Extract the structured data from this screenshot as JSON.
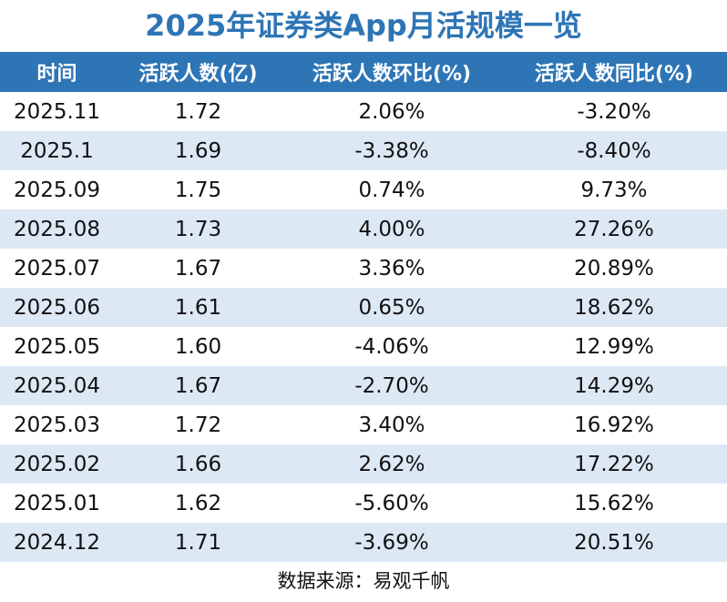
{
  "title": "2025年证券类App月活规模一览",
  "table": {
    "header": [
      "时间",
      "活跃人数(亿)",
      "活跃人数环比(%)",
      "活跃人数同比(%)"
    ],
    "rows": [
      [
        "2025.11",
        "1.72",
        "2.06%",
        "-3.20%"
      ],
      [
        "2025.1",
        "1.69",
        "-3.38%",
        "-8.40%"
      ],
      [
        "2025.09",
        "1.75",
        "0.74%",
        "9.73%"
      ],
      [
        "2025.08",
        "1.73",
        "4.00%",
        "27.26%"
      ],
      [
        "2025.07",
        "1.67",
        "3.36%",
        "20.89%"
      ],
      [
        "2025.06",
        "1.61",
        "0.65%",
        "18.62%"
      ],
      [
        "2025.05",
        "1.60",
        "-4.06%",
        "12.99%"
      ],
      [
        "2025.04",
        "1.67",
        "-2.70%",
        "14.29%"
      ],
      [
        "2025.03",
        "1.72",
        "3.40%",
        "16.92%"
      ],
      [
        "2025.02",
        "1.66",
        "2.62%",
        "17.22%"
      ],
      [
        "2025.01",
        "1.62",
        "-5.60%",
        "15.62%"
      ],
      [
        "2024.12",
        "1.71",
        "-3.69%",
        "20.51%"
      ]
    ]
  },
  "source": "数据来源：易观千帆"
}
